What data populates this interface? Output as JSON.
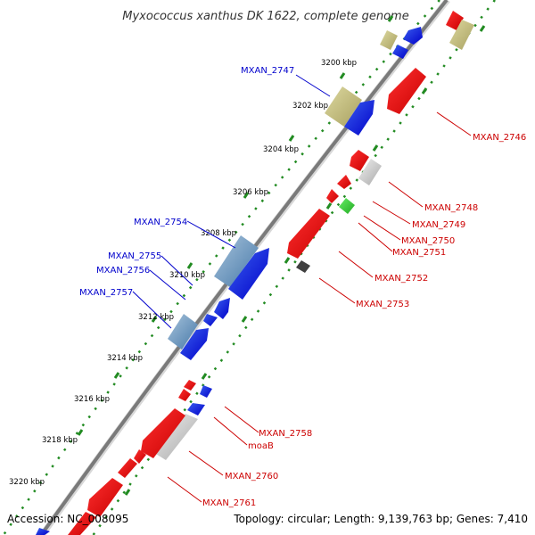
{
  "title": "Myxococcus xanthus DK 1622, complete genome",
  "footer": {
    "accession": "Accession: NC_008095",
    "summary": "Topology: circular; Length: 9,139,763 bp; Genes: 7,410"
  },
  "kbp_ticks": [
    "3200 kbp",
    "3202 kbp",
    "3204 kbp",
    "3206 kbp",
    "3208 kbp",
    "3210 kbp",
    "3212 kbp",
    "3214 kbp",
    "3216 kbp",
    "3218 kbp",
    "3220 kbp"
  ],
  "genes_reverse": [
    "MXAN_2747",
    "MXAN_2754",
    "MXAN_2755",
    "MXAN_2756",
    "MXAN_2757"
  ],
  "genes_forward": [
    "MXAN_2746",
    "MXAN_2748",
    "MXAN_2749",
    "MXAN_2750",
    "MXAN_2751",
    "MXAN_2752",
    "MXAN_2753",
    "MXAN_2758",
    "moaB",
    "MXAN_2760",
    "MXAN_2761"
  ],
  "colors": {
    "reverse_label": "#0000cc",
    "forward_label": "#cc0000",
    "backbone": "#808080",
    "ticks": "#228b22"
  }
}
